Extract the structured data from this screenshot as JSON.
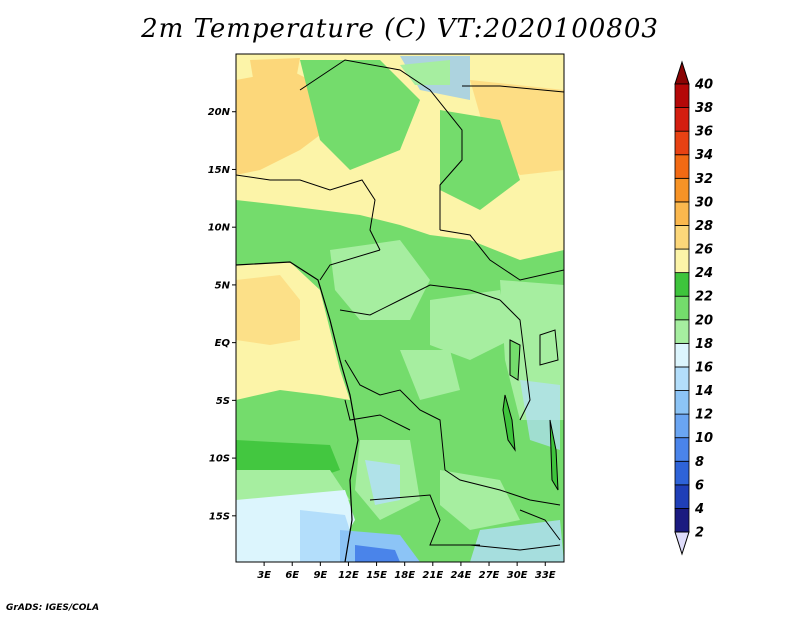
{
  "title": "2m Temperature (C) VT:2020100803",
  "credit": "GrADS: IGES/COLA",
  "map": {
    "lat_range": [
      -19,
      25
    ],
    "lon_range": [
      0,
      35
    ],
    "lat_ticks": [
      {
        "v": 20,
        "label": "20N"
      },
      {
        "v": 15,
        "label": "15N"
      },
      {
        "v": 10,
        "label": "10N"
      },
      {
        "v": 5,
        "label": "5N"
      },
      {
        "v": 0,
        "label": "EQ"
      },
      {
        "v": -5,
        "label": "5S"
      },
      {
        "v": -10,
        "label": "10S"
      },
      {
        "v": -15,
        "label": "15S"
      }
    ],
    "lon_ticks": [
      {
        "v": 3,
        "label": "3E"
      },
      {
        "v": 6,
        "label": "6E"
      },
      {
        "v": 9,
        "label": "9E"
      },
      {
        "v": 12,
        "label": "12E"
      },
      {
        "v": 15,
        "label": "15E"
      },
      {
        "v": 18,
        "label": "18E"
      },
      {
        "v": 21,
        "label": "21E"
      },
      {
        "v": 24,
        "label": "24E"
      },
      {
        "v": 27,
        "label": "27E"
      },
      {
        "v": 30,
        "label": "30E"
      },
      {
        "v": 33,
        "label": "33E"
      }
    ]
  },
  "colorbar": {
    "labels": [
      "2",
      "4",
      "6",
      "8",
      "10",
      "12",
      "14",
      "16",
      "18",
      "20",
      "22",
      "24",
      "26",
      "28",
      "30",
      "32",
      "34",
      "36",
      "38",
      "40"
    ],
    "colors": [
      "#1a1a80",
      "#1f3fb8",
      "#2e63d8",
      "#4a84ea",
      "#6aa5f2",
      "#8cc4f6",
      "#b3defb",
      "#dcf5fd",
      "#a6eea0",
      "#74dc6c",
      "#3ec43c",
      "#fcf4a8",
      "#fcd77a",
      "#fbb84e",
      "#f79326",
      "#f26a14",
      "#e84213",
      "#d41e10",
      "#b40808",
      "#8a0404"
    ],
    "min_color": "#dedcfa"
  }
}
